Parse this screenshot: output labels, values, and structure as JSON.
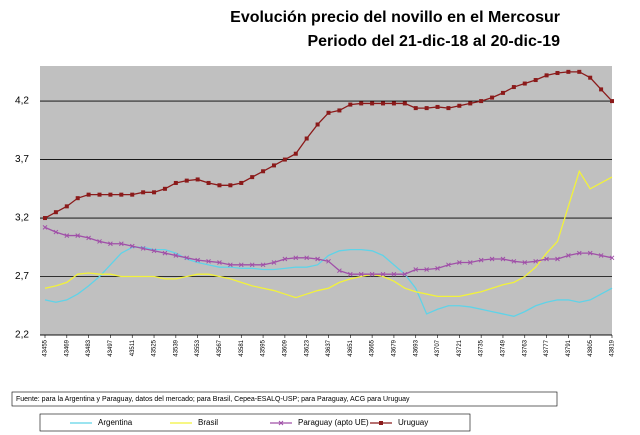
{
  "chart_data": {
    "type": "line",
    "title": "Evolución precio del novillo en el Mercosur",
    "subtitle": "Periodo del 21-dic-18 al 20-dic-19",
    "note": "Fuente: para la Argentina y Paraguay, datos del mercado; para Brasil, Cepea-ESALQ-USP; para Paraguay, ACG para Uruguay",
    "x": [
      43455,
      43462,
      43469,
      43476,
      43483,
      43490,
      43497,
      43504,
      43511,
      43518,
      43525,
      43532,
      43539,
      43546,
      43553,
      43560,
      43567,
      43574,
      43581,
      43588,
      43595,
      43602,
      43609,
      43616,
      43623,
      43630,
      43637,
      43644,
      43651,
      43658,
      43665,
      43672,
      43679,
      43686,
      43693,
      43700,
      43707,
      43714,
      43721,
      43728,
      43735,
      43742,
      43749,
      43756,
      43763,
      43770,
      43777,
      43784,
      43791,
      43798,
      43805,
      43812,
      43819
    ],
    "xlim": [
      43455,
      43819
    ],
    "xticks": [
      43455,
      43469,
      43483,
      43497,
      43511,
      43525,
      43539,
      43553,
      43567,
      43581,
      43595,
      43609,
      43623,
      43637,
      43651,
      43665,
      43679,
      43693,
      43707,
      43721,
      43735,
      43749,
      43763,
      43777,
      43791,
      43805,
      43819
    ],
    "ylim": [
      2.2,
      4.5
    ],
    "yticks": [
      {
        "value": 2.2,
        "label": "2,2"
      },
      {
        "value": 2.7,
        "label": "2,7"
      },
      {
        "value": 3.2,
        "label": "3,2"
      },
      {
        "value": 3.7,
        "label": "3,7"
      },
      {
        "value": 4.2,
        "label": "4,2"
      }
    ],
    "grid": true,
    "series": [
      {
        "name": "Argentina",
        "color": "#5fd3e8",
        "marker": "none",
        "values": [
          2.5,
          2.48,
          2.5,
          2.55,
          2.62,
          2.7,
          2.8,
          2.9,
          2.95,
          2.95,
          2.93,
          2.93,
          2.9,
          2.85,
          2.82,
          2.8,
          2.78,
          2.78,
          2.77,
          2.77,
          2.76,
          2.76,
          2.77,
          2.78,
          2.78,
          2.8,
          2.88,
          2.92,
          2.93,
          2.93,
          2.92,
          2.88,
          2.8,
          2.72,
          2.6,
          2.38,
          2.42,
          2.45,
          2.45,
          2.44,
          2.42,
          2.4,
          2.38,
          2.36,
          2.4,
          2.45,
          2.48,
          2.5,
          2.5,
          2.48,
          2.5,
          2.55,
          2.6
        ]
      },
      {
        "name": "Brasil",
        "color": "#f2f23a",
        "marker": "none",
        "values": [
          2.6,
          2.62,
          2.65,
          2.72,
          2.73,
          2.72,
          2.72,
          2.7,
          2.7,
          2.7,
          2.7,
          2.68,
          2.68,
          2.7,
          2.72,
          2.72,
          2.7,
          2.68,
          2.65,
          2.62,
          2.6,
          2.58,
          2.55,
          2.52,
          2.55,
          2.58,
          2.6,
          2.65,
          2.68,
          2.7,
          2.72,
          2.7,
          2.66,
          2.6,
          2.57,
          2.55,
          2.53,
          2.53,
          2.53,
          2.55,
          2.57,
          2.6,
          2.63,
          2.65,
          2.7,
          2.78,
          2.9,
          3.0,
          3.3,
          3.6,
          3.45,
          3.5,
          3.55
        ]
      },
      {
        "name": "Paraguay (apto UE)",
        "color": "#a050a8",
        "marker": "x",
        "values": [
          3.12,
          3.08,
          3.05,
          3.05,
          3.03,
          3.0,
          2.98,
          2.98,
          2.96,
          2.94,
          2.92,
          2.9,
          2.88,
          2.86,
          2.84,
          2.83,
          2.82,
          2.8,
          2.8,
          2.8,
          2.8,
          2.82,
          2.85,
          2.86,
          2.86,
          2.85,
          2.83,
          2.75,
          2.72,
          2.72,
          2.72,
          2.72,
          2.72,
          2.72,
          2.76,
          2.76,
          2.77,
          2.8,
          2.82,
          2.82,
          2.84,
          2.85,
          2.85,
          2.83,
          2.82,
          2.83,
          2.85,
          2.85,
          2.88,
          2.9,
          2.9,
          2.88,
          2.86
        ]
      },
      {
        "name": "Uruguay",
        "color": "#8b1a1a",
        "marker": "square",
        "values": [
          3.2,
          3.25,
          3.3,
          3.37,
          3.4,
          3.4,
          3.4,
          3.4,
          3.4,
          3.42,
          3.42,
          3.45,
          3.5,
          3.52,
          3.53,
          3.5,
          3.48,
          3.48,
          3.5,
          3.55,
          3.6,
          3.65,
          3.7,
          3.75,
          3.88,
          4.0,
          4.1,
          4.12,
          4.17,
          4.18,
          4.18,
          4.18,
          4.18,
          4.18,
          4.14,
          4.14,
          4.15,
          4.14,
          4.16,
          4.18,
          4.2,
          4.23,
          4.27,
          4.32,
          4.35,
          4.38,
          4.42,
          4.44,
          4.45,
          4.45,
          4.4,
          4.3,
          4.2
        ]
      }
    ]
  }
}
